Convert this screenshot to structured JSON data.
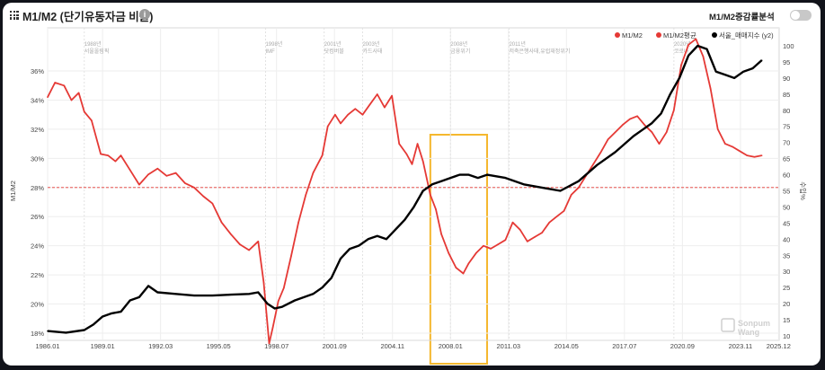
{
  "header": {
    "title": "M1/M2 (단기유동자금 비율)",
    "info_icon": "info-icon",
    "toggle_label": "M1/M2증감률분석",
    "toggle_on": false
  },
  "chart_data": {
    "type": "line",
    "ylabel": "M1/M2",
    "y2label": "수입%",
    "ylim": [
      17,
      38
    ],
    "y2lim": [
      10,
      100
    ],
    "y_ticks": [
      "18%",
      "20%",
      "22%",
      "24%",
      "26%",
      "28%",
      "30%",
      "32%",
      "34%",
      "36%"
    ],
    "y2_ticks": [
      "10",
      "15",
      "20",
      "25",
      "30",
      "35",
      "40",
      "45",
      "50",
      "55",
      "60",
      "65",
      "70",
      "75",
      "80",
      "85",
      "90",
      "95",
      "100"
    ],
    "x_ticks": [
      "1986.01",
      "1989.01",
      "1992.03",
      "1995.05",
      "1998.07",
      "2001.09",
      "2004.11",
      "2008.01",
      "2011.03",
      "2014.05",
      "2017.07",
      "2020.09",
      "2023.11",
      "2025.12"
    ],
    "xlim": [
      1986.0,
      2025.95
    ],
    "legend": [
      {
        "name": "M1/M2",
        "color": "#e53935"
      },
      {
        "name": "M1/M2평균",
        "color": "#e53935"
      },
      {
        "name": "서울_매매지수 (y2)",
        "color": "#000000"
      }
    ],
    "average": 28.0,
    "highlight": {
      "x": [
        2006.9,
        2010.0
      ],
      "color": "#f5b82e"
    },
    "events": [
      {
        "x": 1988.0,
        "year": "1988년",
        "label": "서울올림픽"
      },
      {
        "x": 1997.9,
        "year": "1998년",
        "label": "IMF"
      },
      {
        "x": 2001.1,
        "year": "2001년",
        "label": "닷컴버블"
      },
      {
        "x": 2003.2,
        "year": "2003년",
        "label": "카드사태"
      },
      {
        "x": 2008.0,
        "year": "2008년",
        "label": "금융위기"
      },
      {
        "x": 2011.2,
        "year": "2011년",
        "label": "저축은행사태,유럽재정위기"
      },
      {
        "x": 2020.2,
        "year": "2020년",
        "label": "코로나"
      }
    ],
    "series": [
      {
        "name": "M1/M2",
        "color": "#e53935",
        "x": [
          1986.0,
          1986.4,
          1986.9,
          1987.3,
          1987.7,
          1988.0,
          1988.4,
          1988.9,
          1989.3,
          1989.7,
          1990.0,
          1990.5,
          1991.0,
          1991.5,
          1992.0,
          1992.5,
          1993.0,
          1993.5,
          1994.0,
          1994.5,
          1995.0,
          1995.5,
          1996.0,
          1996.5,
          1997.0,
          1997.5,
          1997.8,
          1998.1,
          1998.3,
          1998.6,
          1998.9,
          1999.3,
          1999.7,
          2000.1,
          2000.5,
          2001.0,
          2001.3,
          2001.7,
          2002.0,
          2002.4,
          2002.8,
          2003.2,
          2003.6,
          2004.0,
          2004.4,
          2004.8,
          2005.2,
          2005.6,
          2005.9,
          2006.2,
          2006.5,
          2006.9,
          2007.2,
          2007.5,
          2007.9,
          2008.3,
          2008.7,
          2009.0,
          2009.4,
          2009.8,
          2010.2,
          2010.6,
          2011.0,
          2011.4,
          2011.8,
          2012.2,
          2012.6,
          2013.0,
          2013.4,
          2013.8,
          2014.2,
          2014.6,
          2015.0,
          2015.4,
          2015.8,
          2016.2,
          2016.6,
          2017.0,
          2017.4,
          2017.8,
          2018.2,
          2018.6,
          2019.0,
          2019.4,
          2019.8,
          2020.2,
          2020.6,
          2021.0,
          2021.4,
          2021.8,
          2022.2,
          2022.6,
          2023.0,
          2023.4,
          2023.8,
          2024.2,
          2024.6,
          2025.0
        ],
        "values": [
          34.2,
          35.2,
          35.0,
          34.0,
          34.5,
          33.2,
          32.6,
          30.3,
          30.2,
          29.8,
          30.2,
          29.2,
          28.2,
          28.9,
          29.3,
          28.8,
          29.0,
          28.3,
          28.0,
          27.4,
          26.9,
          25.6,
          24.8,
          24.1,
          23.7,
          24.3,
          21.5,
          17.3,
          18.4,
          20.2,
          21.1,
          23.3,
          25.6,
          27.5,
          29.0,
          30.2,
          32.2,
          33.0,
          32.4,
          33.0,
          33.4,
          33.0,
          33.7,
          34.4,
          33.5,
          34.3,
          31.0,
          30.3,
          29.6,
          31.0,
          29.8,
          27.5,
          26.5,
          24.8,
          23.5,
          22.5,
          22.1,
          22.8,
          23.5,
          24.0,
          23.8,
          24.1,
          24.4,
          25.6,
          25.1,
          24.3,
          24.6,
          24.9,
          25.6,
          26.0,
          26.4,
          27.5,
          28.0,
          28.8,
          29.6,
          30.4,
          31.3,
          31.8,
          32.3,
          32.7,
          32.9,
          32.3,
          31.8,
          31.0,
          31.8,
          33.3,
          36.4,
          37.8,
          38.2,
          37.0,
          34.8,
          32.0,
          31.0,
          30.8,
          30.5,
          30.2,
          30.1,
          30.2
        ]
      },
      {
        "name": "서울_매매지수 (y2)",
        "color": "#000000",
        "axis": "y2",
        "x": [
          1986.0,
          1987.0,
          1988.0,
          1988.5,
          1989.0,
          1989.5,
          1990.0,
          1990.5,
          1991.0,
          1991.5,
          1992.0,
          1993.0,
          1994.0,
          1995.0,
          1996.0,
          1997.0,
          1997.5,
          1998.0,
          1998.4,
          1998.8,
          1999.5,
          2000.0,
          2000.5,
          2001.0,
          2001.5,
          2002.0,
          2002.5,
          2003.0,
          2003.5,
          2004.0,
          2004.5,
          2005.0,
          2005.5,
          2006.0,
          2006.5,
          2007.0,
          2007.5,
          2008.0,
          2008.5,
          2009.0,
          2009.5,
          2010.0,
          2010.5,
          2011.0,
          2012.0,
          2013.0,
          2014.0,
          2015.0,
          2016.0,
          2017.0,
          2018.0,
          2018.5,
          2019.0,
          2019.5,
          2020.0,
          2020.5,
          2021.0,
          2021.5,
          2022.0,
          2022.5,
          2023.0,
          2023.5,
          2024.0,
          2024.5,
          2025.0
        ],
        "values": [
          11.5,
          11.0,
          11.8,
          13.5,
          16.0,
          17.0,
          17.5,
          21.0,
          22.0,
          25.5,
          23.5,
          23.0,
          22.5,
          22.5,
          22.8,
          23.0,
          23.5,
          20.0,
          18.5,
          19.0,
          21.0,
          22.0,
          23.0,
          25.0,
          28.0,
          34.0,
          37.0,
          38.0,
          40.0,
          41.0,
          40.0,
          43.0,
          46.0,
          50.0,
          55.0,
          57.0,
          58.0,
          59.0,
          60.0,
          60.0,
          59.0,
          60.0,
          59.5,
          59.0,
          57.0,
          56.0,
          55.0,
          58.0,
          63.0,
          67.0,
          72.0,
          74.0,
          76.0,
          79.0,
          85.0,
          90.0,
          97.0,
          100.0,
          99.0,
          92.0,
          91.0,
          90.0,
          92.0,
          93.0,
          95.5
        ]
      }
    ]
  },
  "watermark": {
    "line1": "Sonpum",
    "line2": "Wang"
  }
}
